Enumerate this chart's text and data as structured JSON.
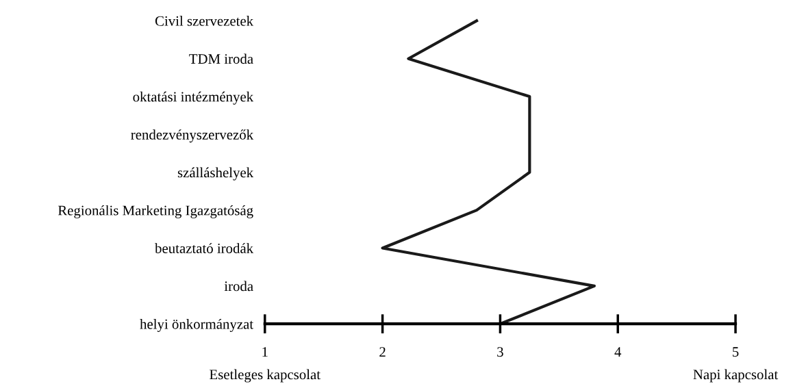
{
  "chart_data": {
    "type": "line",
    "orientation": "horizontal",
    "categories": [
      "Civil szervezetek",
      "TDM iroda",
      "oktatási intézmények",
      "rendezvényszervezők",
      "szálláshelyek",
      "Regionális Marketing Igazgatóság",
      "beutaztató irodák",
      "iroda",
      "helyi önkormányzat"
    ],
    "series": [
      {
        "color": "#1a1a1a",
        "values": [
          2.8,
          2.22,
          3.25,
          3.25,
          3.25,
          2.8,
          2.0,
          3.8,
          3.0
        ]
      }
    ],
    "xlim": [
      1,
      5
    ],
    "xticks": [
      1,
      2,
      3,
      4,
      5
    ],
    "annotations": [
      "Esetleges kapcsolat",
      "Napi kapcsolat"
    ],
    "grid": false,
    "legend": false,
    "marker": "none",
    "line_style": "solid"
  }
}
